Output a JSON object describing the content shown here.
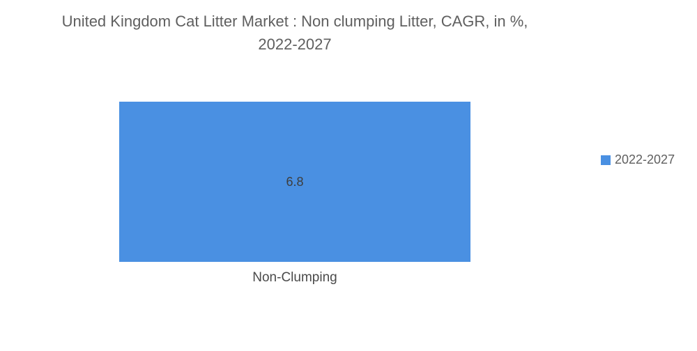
{
  "chart_data": {
    "type": "bar",
    "title_lines": [
      "United Kingdom Cat Litter Market : Non clumping Litter, CAGR, in %,",
      "2022-2027"
    ],
    "categories": [
      "Non-Clumping"
    ],
    "series": [
      {
        "name": "2022-2027",
        "values": [
          6.8
        ],
        "color": "#4a90e2"
      }
    ],
    "data_labels": [
      "6.8"
    ],
    "ylim": [
      0,
      6.8
    ],
    "legend_position": "right",
    "grid": false
  }
}
